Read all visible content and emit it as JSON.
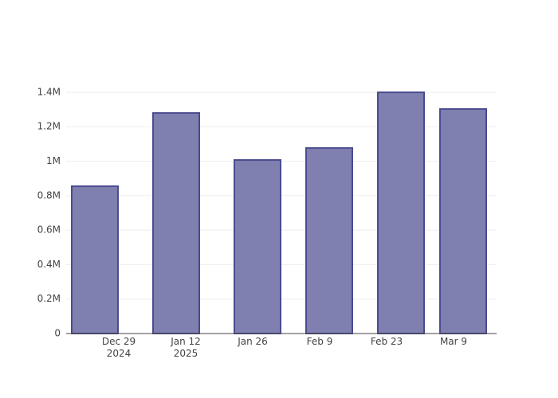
{
  "chart_data": {
    "type": "bar",
    "x": [
      "2024-12-24",
      "2025-01-10",
      "2025-01-27",
      "2025-02-11",
      "2025-02-26",
      "2025-03-11"
    ],
    "values": [
      855000,
      1280000,
      1007000,
      1077000,
      1400000,
      1303000
    ],
    "color": "#7f7fb0",
    "edge_color": "#4b4b8f",
    "xlim": [
      "2024-12-18",
      "2025-03-18"
    ],
    "xticks": [
      {
        "value": "2024-12-29",
        "label": "Dec 29\n2024"
      },
      {
        "value": "2025-01-12",
        "label": "Jan 12\n2025"
      },
      {
        "value": "2025-01-26",
        "label": "Jan 26"
      },
      {
        "value": "2025-02-09",
        "label": "Feb 9"
      },
      {
        "value": "2025-02-23",
        "label": "Feb 23"
      },
      {
        "value": "2025-03-09",
        "label": "Mar 9"
      }
    ],
    "ylim": [
      0,
      1473700
    ],
    "yticks": [
      0,
      {
        "value": 200000,
        "label": "0.2M"
      },
      {
        "value": 400000,
        "label": "0.4M"
      },
      {
        "value": 600000,
        "label": "0.6M"
      },
      {
        "value": 800000,
        "label": "0.8M"
      },
      {
        "value": 1000000,
        "label": "1M"
      },
      {
        "value": 1200000,
        "label": "1.2M"
      },
      {
        "value": 1400000,
        "label": "1.4M"
      }
    ],
    "grid": true
  }
}
